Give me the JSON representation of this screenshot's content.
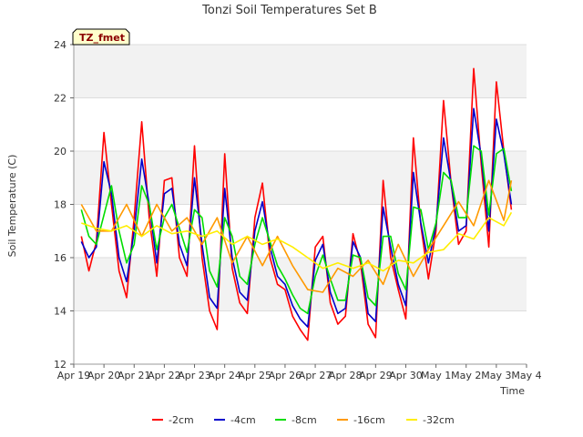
{
  "chart_data": {
    "type": "line",
    "title": "Tonzi Soil Temperatures Set B",
    "xlabel": "Time",
    "ylabel": "Soil Temperature (C)",
    "site_label": "TZ_fmet",
    "ylim": [
      12,
      24
    ],
    "xlim": [
      "2023-04-19",
      "2023-05-04"
    ],
    "y_ticks": [
      "12",
      "14",
      "16",
      "18",
      "20",
      "22",
      "24"
    ],
    "x_ticks": [
      "Apr 19",
      "Apr 20",
      "Apr 21",
      "Apr 22",
      "Apr 23",
      "Apr 24",
      "Apr 25",
      "Apr 26",
      "Apr 27",
      "Apr 28",
      "Apr 29",
      "Apr 30",
      "May 1",
      "May 2",
      "May 3",
      "May 4"
    ],
    "x_tick_dates": [
      "2023-04-19",
      "2023-04-20",
      "2023-04-21",
      "2023-04-22",
      "2023-04-23",
      "2023-04-24",
      "2023-04-25",
      "2023-04-26",
      "2023-04-27",
      "2023-04-28",
      "2023-04-29",
      "2023-04-30",
      "2023-05-01",
      "2023-05-02",
      "2023-05-03",
      "2023-05-04"
    ],
    "grid": true,
    "legend_position": "bottom",
    "series": [
      {
        "name": "-2cm",
        "color": "#ff0000",
        "x": [
          "2023-04-19 06:00",
          "2023-04-19 12:00",
          "2023-04-19 18:00",
          "2023-04-20 00:00",
          "2023-04-20 06:00",
          "2023-04-20 12:00",
          "2023-04-20 18:00",
          "2023-04-21 00:00",
          "2023-04-21 06:00",
          "2023-04-21 12:00",
          "2023-04-21 18:00",
          "2023-04-22 00:00",
          "2023-04-22 06:00",
          "2023-04-22 12:00",
          "2023-04-22 18:00",
          "2023-04-23 00:00",
          "2023-04-23 06:00",
          "2023-04-23 12:00",
          "2023-04-23 18:00",
          "2023-04-24 00:00",
          "2023-04-24 06:00",
          "2023-04-24 12:00",
          "2023-04-24 18:00",
          "2023-04-25 00:00",
          "2023-04-25 06:00",
          "2023-04-25 12:00",
          "2023-04-25 18:00",
          "2023-04-26 00:00",
          "2023-04-26 06:00",
          "2023-04-26 12:00",
          "2023-04-26 18:00",
          "2023-04-27 00:00",
          "2023-04-27 06:00",
          "2023-04-27 12:00",
          "2023-04-27 18:00",
          "2023-04-28 00:00",
          "2023-04-28 06:00",
          "2023-04-28 12:00",
          "2023-04-28 18:00",
          "2023-04-29 00:00",
          "2023-04-29 06:00",
          "2023-04-29 12:00",
          "2023-04-29 18:00",
          "2023-04-30 00:00",
          "2023-04-30 06:00",
          "2023-04-30 12:00",
          "2023-04-30 18:00",
          "2023-05-01 00:00",
          "2023-05-01 06:00",
          "2023-05-01 12:00",
          "2023-05-01 18:00",
          "2023-05-02 00:00",
          "2023-05-02 06:00",
          "2023-05-02 12:00",
          "2023-05-02 18:00",
          "2023-05-03 00:00",
          "2023-05-03 06:00",
          "2023-05-03 12:00"
        ],
        "values": [
          16.8,
          15.5,
          16.6,
          20.7,
          18.0,
          15.5,
          14.5,
          17.5,
          21.1,
          17.5,
          15.3,
          18.9,
          19.0,
          16.0,
          15.3,
          20.2,
          16.0,
          14.0,
          13.3,
          19.9,
          15.6,
          14.3,
          13.9,
          17.5,
          18.8,
          16.0,
          15.0,
          14.8,
          13.8,
          13.3,
          12.9,
          16.4,
          16.8,
          14.3,
          13.5,
          13.8,
          16.9,
          15.8,
          13.5,
          13.0,
          18.9,
          16.0,
          14.8,
          13.7,
          20.5,
          17.2,
          15.2,
          17.0,
          21.9,
          18.8,
          16.5,
          17.0,
          23.1,
          19.5,
          16.4,
          22.6,
          20.0,
          17.8
        ]
      },
      {
        "name": "-4cm",
        "color": "#0000cc",
        "x": [
          "2023-04-19 06:00",
          "2023-04-19 12:00",
          "2023-04-19 18:00",
          "2023-04-20 00:00",
          "2023-04-20 06:00",
          "2023-04-20 12:00",
          "2023-04-20 18:00",
          "2023-04-21 00:00",
          "2023-04-21 06:00",
          "2023-04-21 12:00",
          "2023-04-21 18:00",
          "2023-04-22 00:00",
          "2023-04-22 06:00",
          "2023-04-22 12:00",
          "2023-04-22 18:00",
          "2023-04-23 00:00",
          "2023-04-23 06:00",
          "2023-04-23 12:00",
          "2023-04-23 18:00",
          "2023-04-24 00:00",
          "2023-04-24 06:00",
          "2023-04-24 12:00",
          "2023-04-24 18:00",
          "2023-04-25 00:00",
          "2023-04-25 06:00",
          "2023-04-25 12:00",
          "2023-04-25 18:00",
          "2023-04-26 00:00",
          "2023-04-26 06:00",
          "2023-04-26 12:00",
          "2023-04-26 18:00",
          "2023-04-27 00:00",
          "2023-04-27 06:00",
          "2023-04-27 12:00",
          "2023-04-27 18:00",
          "2023-04-28 00:00",
          "2023-04-28 06:00",
          "2023-04-28 12:00",
          "2023-04-28 18:00",
          "2023-04-29 00:00",
          "2023-04-29 06:00",
          "2023-04-29 12:00",
          "2023-04-29 18:00",
          "2023-04-30 00:00",
          "2023-04-30 06:00",
          "2023-04-30 12:00",
          "2023-04-30 18:00",
          "2023-05-01 00:00",
          "2023-05-01 06:00",
          "2023-05-01 12:00",
          "2023-05-01 18:00",
          "2023-05-02 00:00",
          "2023-05-02 06:00",
          "2023-05-02 12:00",
          "2023-05-02 18:00",
          "2023-05-03 00:00",
          "2023-05-03 06:00",
          "2023-05-03 12:00"
        ],
        "values": [
          16.6,
          16.0,
          16.4,
          19.6,
          18.4,
          16.0,
          15.1,
          17.0,
          19.7,
          18.0,
          15.8,
          18.4,
          18.6,
          16.5,
          15.7,
          19.0,
          16.5,
          14.5,
          14.1,
          18.6,
          16.0,
          14.7,
          14.4,
          17.0,
          18.1,
          16.4,
          15.3,
          15.0,
          14.2,
          13.7,
          13.4,
          15.9,
          16.5,
          14.7,
          13.9,
          14.1,
          16.6,
          16.0,
          13.9,
          13.6,
          17.9,
          16.4,
          15.0,
          14.2,
          19.2,
          17.3,
          15.8,
          17.2,
          20.5,
          18.8,
          17.0,
          17.2,
          21.6,
          19.8,
          17.0,
          21.2,
          19.9,
          18.0
        ]
      },
      {
        "name": "-8cm",
        "color": "#00dd00",
        "x": [
          "2023-04-19 06:00",
          "2023-04-19 12:00",
          "2023-04-19 18:00",
          "2023-04-20 00:00",
          "2023-04-20 06:00",
          "2023-04-20 12:00",
          "2023-04-20 18:00",
          "2023-04-21 00:00",
          "2023-04-21 06:00",
          "2023-04-21 12:00",
          "2023-04-21 18:00",
          "2023-04-22 00:00",
          "2023-04-22 06:00",
          "2023-04-22 12:00",
          "2023-04-22 18:00",
          "2023-04-23 00:00",
          "2023-04-23 06:00",
          "2023-04-23 12:00",
          "2023-04-23 18:00",
          "2023-04-24 00:00",
          "2023-04-24 06:00",
          "2023-04-24 12:00",
          "2023-04-24 18:00",
          "2023-04-25 00:00",
          "2023-04-25 06:00",
          "2023-04-25 12:00",
          "2023-04-25 18:00",
          "2023-04-26 00:00",
          "2023-04-26 06:00",
          "2023-04-26 12:00",
          "2023-04-26 18:00",
          "2023-04-27 00:00",
          "2023-04-27 06:00",
          "2023-04-27 12:00",
          "2023-04-27 18:00",
          "2023-04-28 00:00",
          "2023-04-28 06:00",
          "2023-04-28 12:00",
          "2023-04-28 18:00",
          "2023-04-29 00:00",
          "2023-04-29 06:00",
          "2023-04-29 12:00",
          "2023-04-29 18:00",
          "2023-04-30 00:00",
          "2023-04-30 06:00",
          "2023-04-30 12:00",
          "2023-04-30 18:00",
          "2023-05-01 00:00",
          "2023-05-01 06:00",
          "2023-05-01 12:00",
          "2023-05-01 18:00",
          "2023-05-02 00:00",
          "2023-05-02 06:00",
          "2023-05-02 12:00",
          "2023-05-02 18:00",
          "2023-05-03 00:00",
          "2023-05-03 06:00",
          "2023-05-03 12:00"
        ],
        "values": [
          17.8,
          16.8,
          16.5,
          17.6,
          18.7,
          17.0,
          15.8,
          16.5,
          18.7,
          18.0,
          16.3,
          17.5,
          18.0,
          17.1,
          16.2,
          17.8,
          17.5,
          15.5,
          14.9,
          17.5,
          16.8,
          15.3,
          15.0,
          16.5,
          17.5,
          16.6,
          15.7,
          15.2,
          14.6,
          14.1,
          13.9,
          15.3,
          16.1,
          15.2,
          14.4,
          14.4,
          16.1,
          16.0,
          14.5,
          14.2,
          16.8,
          16.8,
          15.4,
          14.8,
          17.9,
          17.8,
          16.3,
          17.3,
          19.2,
          18.9,
          17.5,
          17.5,
          20.2,
          20.0,
          17.6,
          19.9,
          20.1,
          18.5
        ]
      },
      {
        "name": "-16cm",
        "color": "#ff9900",
        "x": [
          "2023-04-19 06:00",
          "2023-04-19 18:00",
          "2023-04-20 06:00",
          "2023-04-20 18:00",
          "2023-04-21 06:00",
          "2023-04-21 18:00",
          "2023-04-22 06:00",
          "2023-04-22 18:00",
          "2023-04-23 06:00",
          "2023-04-23 18:00",
          "2023-04-24 06:00",
          "2023-04-24 18:00",
          "2023-04-25 06:00",
          "2023-04-25 18:00",
          "2023-04-26 06:00",
          "2023-04-26 18:00",
          "2023-04-27 06:00",
          "2023-04-27 18:00",
          "2023-04-28 06:00",
          "2023-04-28 18:00",
          "2023-04-29 06:00",
          "2023-04-29 18:00",
          "2023-04-30 06:00",
          "2023-04-30 18:00",
          "2023-05-01 06:00",
          "2023-05-01 18:00",
          "2023-05-02 06:00",
          "2023-05-02 18:00",
          "2023-05-03 06:00",
          "2023-05-03 12:00"
        ],
        "values": [
          18.0,
          17.0,
          17.0,
          18.0,
          16.8,
          18.0,
          17.0,
          17.5,
          16.5,
          17.5,
          15.8,
          16.8,
          15.7,
          16.8,
          15.7,
          14.8,
          14.7,
          15.6,
          15.3,
          15.9,
          15.0,
          16.5,
          15.3,
          16.3,
          17.2,
          18.1,
          17.2,
          18.9,
          17.4,
          18.9
        ]
      },
      {
        "name": "-32cm",
        "color": "#ffee00",
        "x": [
          "2023-04-19 06:00",
          "2023-04-19 18:00",
          "2023-04-20 06:00",
          "2023-04-20 18:00",
          "2023-04-21 06:00",
          "2023-04-21 18:00",
          "2023-04-22 06:00",
          "2023-04-22 18:00",
          "2023-04-23 06:00",
          "2023-04-23 18:00",
          "2023-04-24 06:00",
          "2023-04-24 18:00",
          "2023-04-25 06:00",
          "2023-04-25 18:00",
          "2023-04-26 06:00",
          "2023-04-26 18:00",
          "2023-04-27 06:00",
          "2023-04-27 18:00",
          "2023-04-28 06:00",
          "2023-04-28 18:00",
          "2023-04-29 06:00",
          "2023-04-29 18:00",
          "2023-04-30 06:00",
          "2023-04-30 18:00",
          "2023-05-01 06:00",
          "2023-05-01 18:00",
          "2023-05-02 06:00",
          "2023-05-02 18:00",
          "2023-05-03 06:00",
          "2023-05-03 12:00"
        ],
        "values": [
          17.3,
          17.1,
          17.0,
          17.2,
          16.8,
          17.2,
          16.9,
          17.0,
          16.8,
          17.0,
          16.5,
          16.8,
          16.5,
          16.7,
          16.4,
          16.0,
          15.6,
          15.8,
          15.6,
          15.8,
          15.5,
          15.9,
          15.8,
          16.2,
          16.3,
          16.9,
          16.7,
          17.5,
          17.2,
          17.7
        ]
      }
    ]
  }
}
